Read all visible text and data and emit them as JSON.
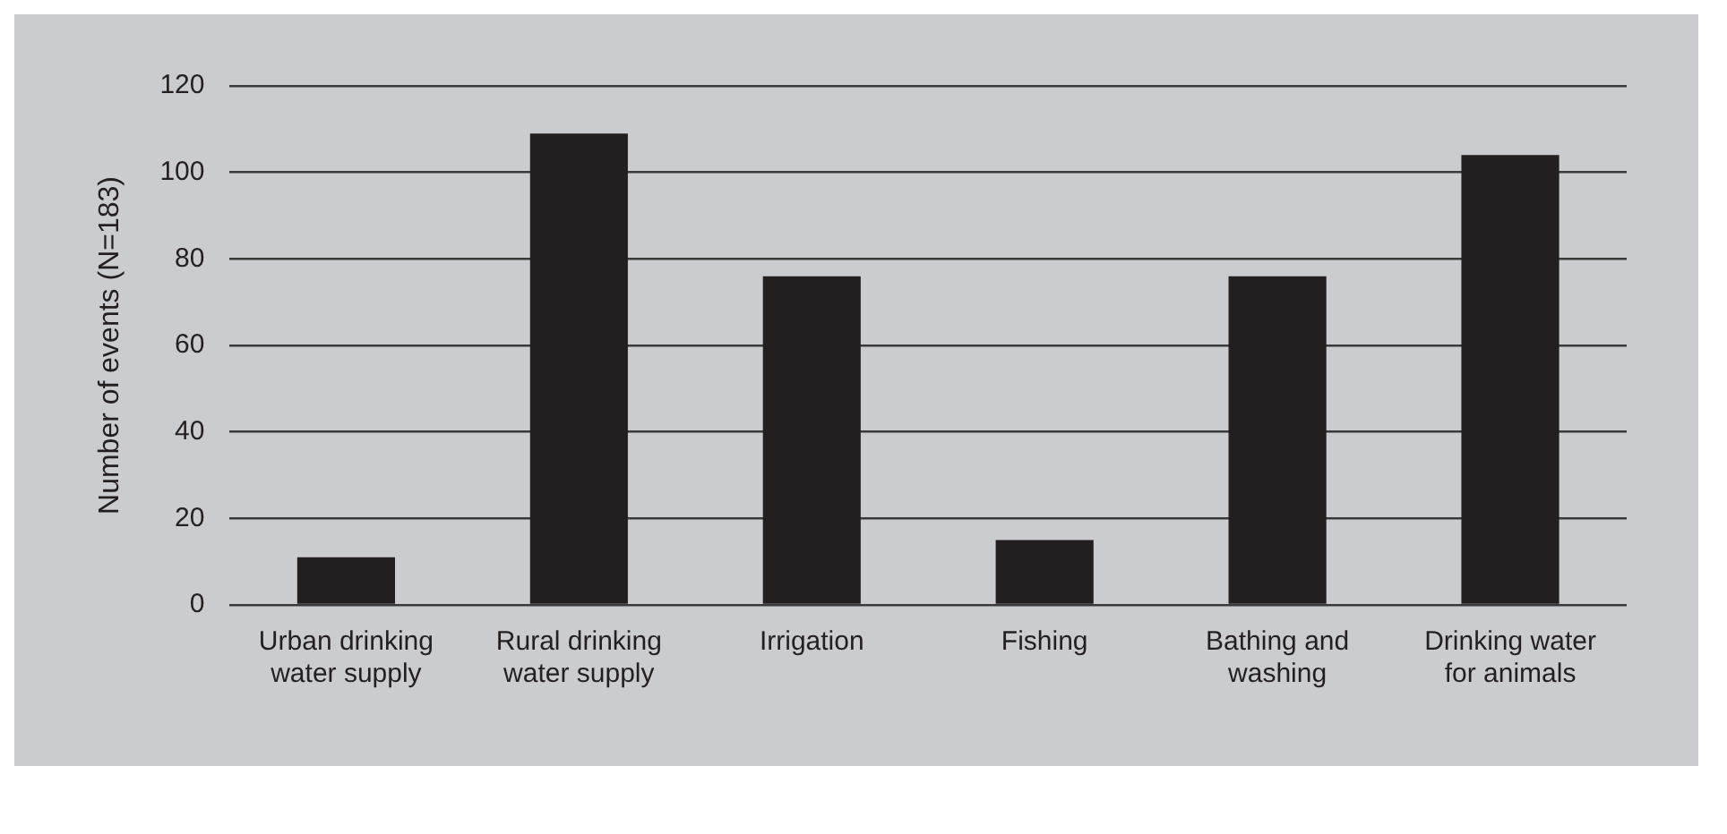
{
  "chart_data": {
    "type": "bar",
    "ylabel": "Number of events (N=183)",
    "categories": [
      "Urban drinking water supply",
      "Rural drinking water supply",
      "Irrigation",
      "Fishing",
      "Bathing and washing",
      "Drinking water for animals"
    ],
    "values": [
      11,
      109,
      76,
      15,
      76,
      104
    ],
    "color": "#231f20",
    "ylim": [
      0,
      120
    ],
    "yticks": [
      0,
      20,
      40,
      60,
      80,
      100,
      120
    ],
    "grid": "y"
  }
}
